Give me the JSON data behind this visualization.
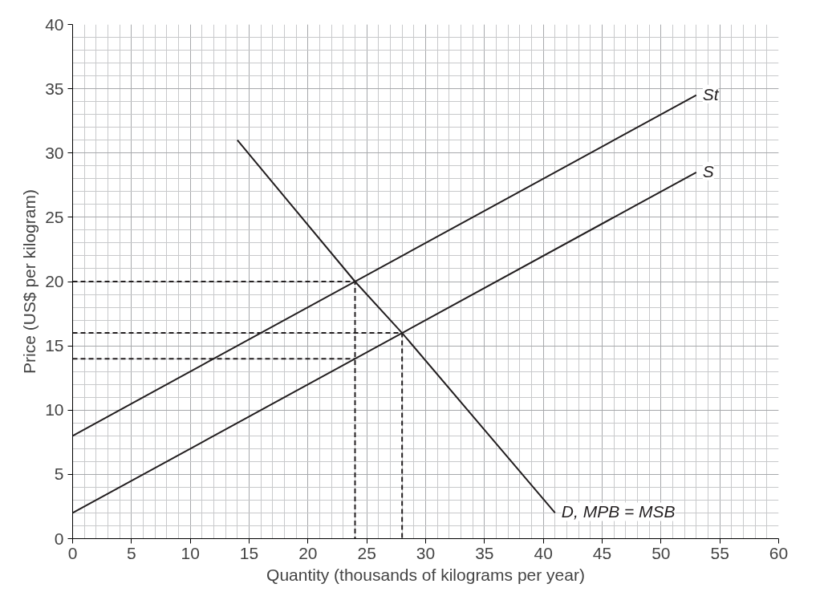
{
  "chart_data": {
    "type": "line",
    "xlabel": "Quantity (thousands of kilograms per year)",
    "ylabel": "Price (US$ per kilogram)",
    "xlim": [
      0,
      60
    ],
    "ylim": [
      0,
      40
    ],
    "xticks": [
      0,
      5,
      10,
      15,
      20,
      25,
      30,
      35,
      40,
      45,
      50,
      55,
      60
    ],
    "yticks": [
      0,
      5,
      10,
      15,
      20,
      25,
      30,
      35,
      40
    ],
    "grid": true,
    "line_style": "solid",
    "series": [
      {
        "name": "St",
        "color": "#231f20",
        "x": [
          0,
          53
        ],
        "values": [
          8,
          34.5
        ]
      },
      {
        "name": "S",
        "color": "#231f20",
        "x": [
          0,
          53
        ],
        "values": [
          2,
          28.5
        ]
      },
      {
        "name": "D, MPB = MSB",
        "color": "#231f20",
        "x": [
          14,
          24,
          28,
          41
        ],
        "values": [
          31,
          20,
          16,
          2
        ]
      },
      {
        "color": "#231f20",
        "line_style": "dashed",
        "x": [
          0,
          24,
          24
        ],
        "values": [
          20,
          20,
          0
        ]
      },
      {
        "color": "#231f20",
        "line_style": "dashed",
        "x": [
          0,
          28,
          28
        ],
        "values": [
          16,
          16,
          0
        ]
      },
      {
        "color": "#231f20",
        "line_style": "dashed",
        "x": [
          0,
          24
        ],
        "values": [
          14,
          14
        ]
      }
    ]
  }
}
